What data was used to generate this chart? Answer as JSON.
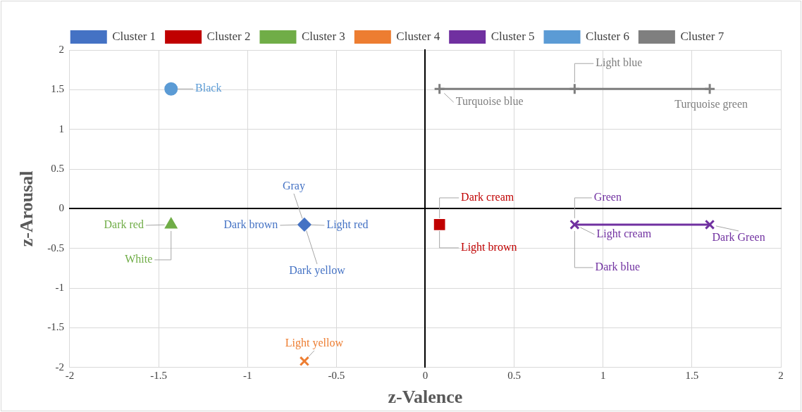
{
  "chart_data": {
    "type": "scatter",
    "xlabel": "z-Valence",
    "ylabel": "z-Arousal",
    "xlim": [
      -2,
      2
    ],
    "ylim": [
      -2,
      2
    ],
    "xticks": [
      -2,
      -1.5,
      -1,
      -0.5,
      0,
      0.5,
      1,
      1.5,
      2
    ],
    "yticks": [
      -2,
      -1.5,
      -1,
      -0.5,
      0,
      0.5,
      1,
      1.5,
      2
    ],
    "grid": true,
    "legend": "top",
    "series": [
      {
        "name": "Cluster 1",
        "marker": "diamond",
        "color": "#4472c4",
        "x": [
          -0.68
        ],
        "values": [
          -0.2
        ]
      },
      {
        "name": "Cluster 2",
        "marker": "square",
        "color": "#c00000",
        "x": [
          0.08
        ],
        "values": [
          -0.2
        ]
      },
      {
        "name": "Cluster 3",
        "marker": "triangle",
        "color": "#70ad47",
        "x": [
          -1.43
        ],
        "values": [
          -0.2
        ]
      },
      {
        "name": "Cluster 4",
        "marker": "cross",
        "color": "#ed7d31",
        "x": [
          -0.68
        ],
        "values": [
          -1.92
        ]
      },
      {
        "name": "Cluster 5",
        "type": "line",
        "marker": "cross",
        "color": "#7030a0",
        "x": [
          0.84,
          1.6
        ],
        "values": [
          -0.2,
          -0.2
        ]
      },
      {
        "name": "Cluster 6",
        "marker": "circle",
        "color": "#5b9bd5",
        "x": [
          -1.43
        ],
        "values": [
          1.51
        ]
      },
      {
        "name": "Cluster 7",
        "type": "line",
        "marker": "plus",
        "color": "#7f7f7f",
        "x": [
          0.08,
          0.84,
          1.6
        ],
        "values": [
          1.51,
          1.51,
          1.51
        ]
      }
    ],
    "annotations": [
      {
        "text": "Gray",
        "x": -0.68,
        "y": -0.2
      },
      {
        "text": "Dark brown",
        "x": -0.68,
        "y": -0.2
      },
      {
        "text": "Light red",
        "x": -0.68,
        "y": -0.2
      },
      {
        "text": "Dark yellow",
        "x": -0.68,
        "y": -0.2
      },
      {
        "text": "Dark cream",
        "x": 0.08,
        "y": -0.2
      },
      {
        "text": "Light brown",
        "x": 0.08,
        "y": -0.2
      },
      {
        "text": "Dark red",
        "x": -1.43,
        "y": -0.2
      },
      {
        "text": "White",
        "x": -1.43,
        "y": -0.2
      },
      {
        "text": "Light yellow",
        "x": -0.68,
        "y": -1.92
      },
      {
        "text": "Green",
        "x": 0.84,
        "y": -0.2
      },
      {
        "text": "Light cream",
        "x": 0.84,
        "y": -0.2
      },
      {
        "text": "Dark blue",
        "x": 0.84,
        "y": -0.2
      },
      {
        "text": "Dark Green",
        "x": 1.6,
        "y": -0.2
      },
      {
        "text": "Black",
        "x": -1.43,
        "y": 1.51
      },
      {
        "text": "Turquoise blue",
        "x": 0.08,
        "y": 1.51
      },
      {
        "text": "Light blue",
        "x": 0.84,
        "y": 1.51
      },
      {
        "text": "Turquoise green",
        "x": 1.6,
        "y": 1.51
      }
    ]
  }
}
